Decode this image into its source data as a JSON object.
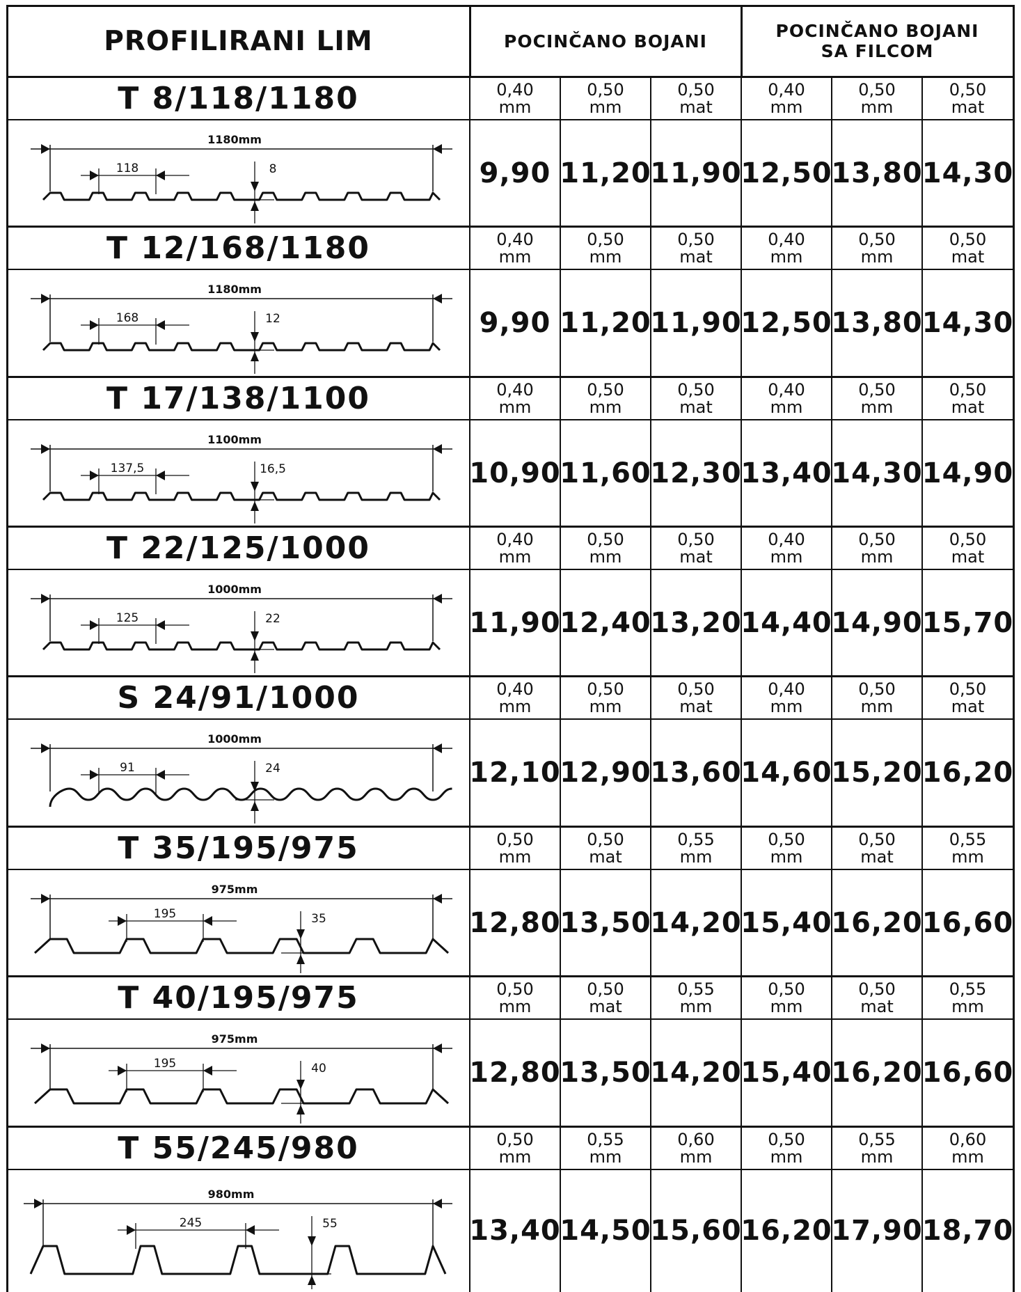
{
  "table": {
    "title": "PROFILIRANI LIM",
    "group1": "POCINČANO BOJANI",
    "group2": [
      "POCINČANO BOJANI",
      "SA FILCOM"
    ]
  },
  "profiles": [
    {
      "name": "T 8/118/1180",
      "specs": [
        [
          "0,40",
          "mm"
        ],
        [
          "0,50",
          "mm"
        ],
        [
          "0,50",
          "mat"
        ],
        [
          "0,40",
          "mm"
        ],
        [
          "0,50",
          "mm"
        ],
        [
          "0,50",
          "mat"
        ]
      ],
      "prices": [
        "9,90",
        "11,20",
        "11,90",
        "12,50",
        "13,80",
        "14,30"
      ],
      "diagram": {
        "shape": "trapezoid-small",
        "total": "1180mm",
        "pitch": "118",
        "height": "8"
      }
    },
    {
      "name": "T 12/168/1180",
      "specs": [
        [
          "0,40",
          "mm"
        ],
        [
          "0,50",
          "mm"
        ],
        [
          "0,50",
          "mat"
        ],
        [
          "0,40",
          "mm"
        ],
        [
          "0,50",
          "mm"
        ],
        [
          "0,50",
          "mat"
        ]
      ],
      "prices": [
        "9,90",
        "11,20",
        "11,90",
        "12,50",
        "13,80",
        "14,30"
      ],
      "diagram": {
        "shape": "trapezoid-small",
        "total": "1180mm",
        "pitch": "168",
        "height": "12"
      }
    },
    {
      "name": "T 17/138/1100",
      "specs": [
        [
          "0,40",
          "mm"
        ],
        [
          "0,50",
          "mm"
        ],
        [
          "0,50",
          "mat"
        ],
        [
          "0,40",
          "mm"
        ],
        [
          "0,50",
          "mm"
        ],
        [
          "0,50",
          "mat"
        ]
      ],
      "prices": [
        "10,90",
        "11,60",
        "12,30",
        "13,40",
        "14,30",
        "14,90"
      ],
      "diagram": {
        "shape": "trapezoid-small",
        "total": "1100mm",
        "pitch": "137,5",
        "height": "16,5"
      }
    },
    {
      "name": "T 22/125/1000",
      "specs": [
        [
          "0,40",
          "mm"
        ],
        [
          "0,50",
          "mm"
        ],
        [
          "0,50",
          "mat"
        ],
        [
          "0,40",
          "mm"
        ],
        [
          "0,50",
          "mm"
        ],
        [
          "0,50",
          "mat"
        ]
      ],
      "prices": [
        "11,90",
        "12,40",
        "13,20",
        "14,40",
        "14,90",
        "15,70"
      ],
      "diagram": {
        "shape": "trapezoid-small",
        "total": "1000mm",
        "pitch": "125",
        "height": "22"
      }
    },
    {
      "name": "S 24/91/1000",
      "specs": [
        [
          "0,40",
          "mm"
        ],
        [
          "0,50",
          "mm"
        ],
        [
          "0,50",
          "mat"
        ],
        [
          "0,40",
          "mm"
        ],
        [
          "0,50",
          "mm"
        ],
        [
          "0,50",
          "mat"
        ]
      ],
      "prices": [
        "12,10",
        "12,90",
        "13,60",
        "14,60",
        "15,20",
        "16,20"
      ],
      "diagram": {
        "shape": "wave",
        "total": "1000mm",
        "pitch": "91",
        "height": "24"
      }
    },
    {
      "name": "T 35/195/975",
      "specs": [
        [
          "0,50",
          "mm"
        ],
        [
          "0,50",
          "mat"
        ],
        [
          "0,55",
          "mm"
        ],
        [
          "0,50",
          "mm"
        ],
        [
          "0,50",
          "mat"
        ],
        [
          "0,55",
          "mm"
        ]
      ],
      "prices": [
        "12,80",
        "13,50",
        "14,20",
        "15,40",
        "16,20",
        "16,60"
      ],
      "diagram": {
        "shape": "trapezoid-medium",
        "total": "975mm",
        "pitch": "195",
        "height": "35"
      }
    },
    {
      "name": "T 40/195/975",
      "specs": [
        [
          "0,50",
          "mm"
        ],
        [
          "0,50",
          "mat"
        ],
        [
          "0,55",
          "mm"
        ],
        [
          "0,50",
          "mm"
        ],
        [
          "0,50",
          "mat"
        ],
        [
          "0,55",
          "mm"
        ]
      ],
      "prices": [
        "12,80",
        "13,50",
        "14,20",
        "15,40",
        "16,20",
        "16,60"
      ],
      "diagram": {
        "shape": "trapezoid-medium",
        "total": "975mm",
        "pitch": "195",
        "height": "40"
      }
    },
    {
      "name": "T 55/245/980",
      "specs": [
        [
          "0,50",
          "mm"
        ],
        [
          "0,55",
          "mm"
        ],
        [
          "0,60",
          "mm"
        ],
        [
          "0,50",
          "mm"
        ],
        [
          "0,55",
          "mm"
        ],
        [
          "0,60",
          "mm"
        ]
      ],
      "prices": [
        "13,40",
        "14,50",
        "15,60",
        "16,20",
        "17,90",
        "18,70"
      ],
      "diagram": {
        "shape": "trapezoid-deep",
        "total": "980mm",
        "pitch": "245",
        "height": "55"
      }
    }
  ]
}
